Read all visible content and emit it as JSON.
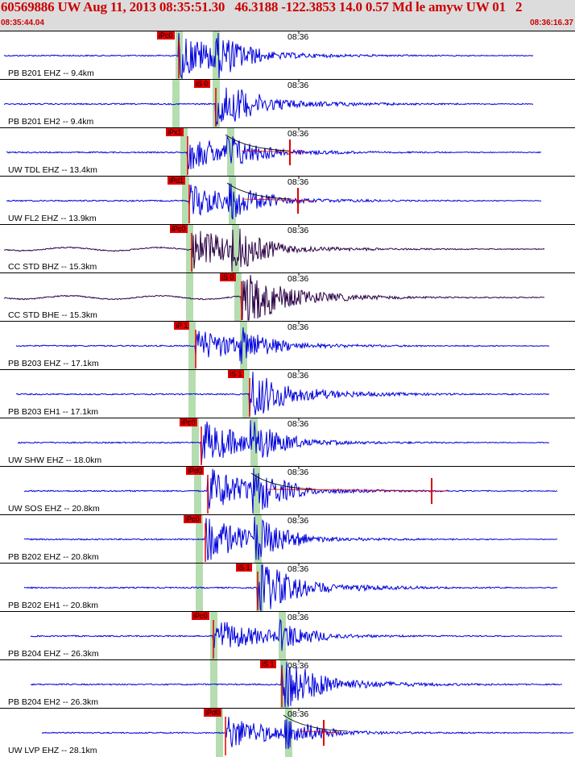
{
  "header": {
    "title": "60569886 UW Aug 11, 2013 08:35:51.30   46.3188 -122.3853 14.0 0.57 Md le amyw UW 01   2",
    "start_time": "08:35:44.04",
    "end_time": "08:36:16.37"
  },
  "minute_label": "08:36",
  "colors": {
    "trace_blue": "#0000dd",
    "trace_purple": "#2a0044",
    "pick_red": "#e00000",
    "window_green": "#b5ddb0",
    "header_bg": "#dcdcdc",
    "title_red": "#cc0000"
  },
  "traces": [
    {
      "label": "PB B201 EHZ -- 9.4km",
      "pick": "iPc0",
      "color": "blue",
      "amp": "high"
    },
    {
      "label": "PB B201 EH2 -- 9.4km",
      "pick": "iS 0",
      "color": "blue",
      "amp": "med"
    },
    {
      "label": "UW TDL EHZ -- 13.4km",
      "pick": "iPx1",
      "color": "blue",
      "amp": "med",
      "coda": true
    },
    {
      "label": "UW FL2 EHZ -- 13.9km",
      "pick": "iPd1",
      "color": "blue",
      "amp": "med",
      "coda": true
    },
    {
      "label": "CC STD BHZ -- 15.3km",
      "pick": "iPc0",
      "color": "purple",
      "amp": "high"
    },
    {
      "label": "CC STD BHE -- 15.3km",
      "pick": "iS 0",
      "color": "purple",
      "amp": "high"
    },
    {
      "label": "PB B203 EHZ -- 17.1km",
      "pick": "iP 1",
      "color": "blue",
      "amp": "med"
    },
    {
      "label": "PB B203 EH1 -- 17.1km",
      "pick": "iS 1",
      "color": "blue",
      "amp": "med"
    },
    {
      "label": "UW SHW EHZ -- 18.0km",
      "pick": "iPc0",
      "color": "blue",
      "amp": "high"
    },
    {
      "label": "UW SOS EHZ -- 20.8km",
      "pick": "iPd0",
      "color": "blue",
      "amp": "high",
      "coda": true
    },
    {
      "label": "PB B202 EHZ -- 20.8km",
      "pick": "iPc0",
      "color": "blue",
      "amp": "high"
    },
    {
      "label": "PB B202 EH1 -- 20.8km",
      "pick": "iS 1",
      "color": "blue",
      "amp": "med"
    },
    {
      "label": "PB B204 EHZ -- 26.3km",
      "pick": "iPc0",
      "color": "blue",
      "amp": "med"
    },
    {
      "label": "PB B204 EH2 -- 26.3km",
      "pick": "iS 1",
      "color": "blue",
      "amp": "med"
    },
    {
      "label": "UW LVP EHZ -- 28.1km",
      "pick": "iPd0",
      "color": "blue",
      "amp": "med",
      "coda": true
    }
  ]
}
